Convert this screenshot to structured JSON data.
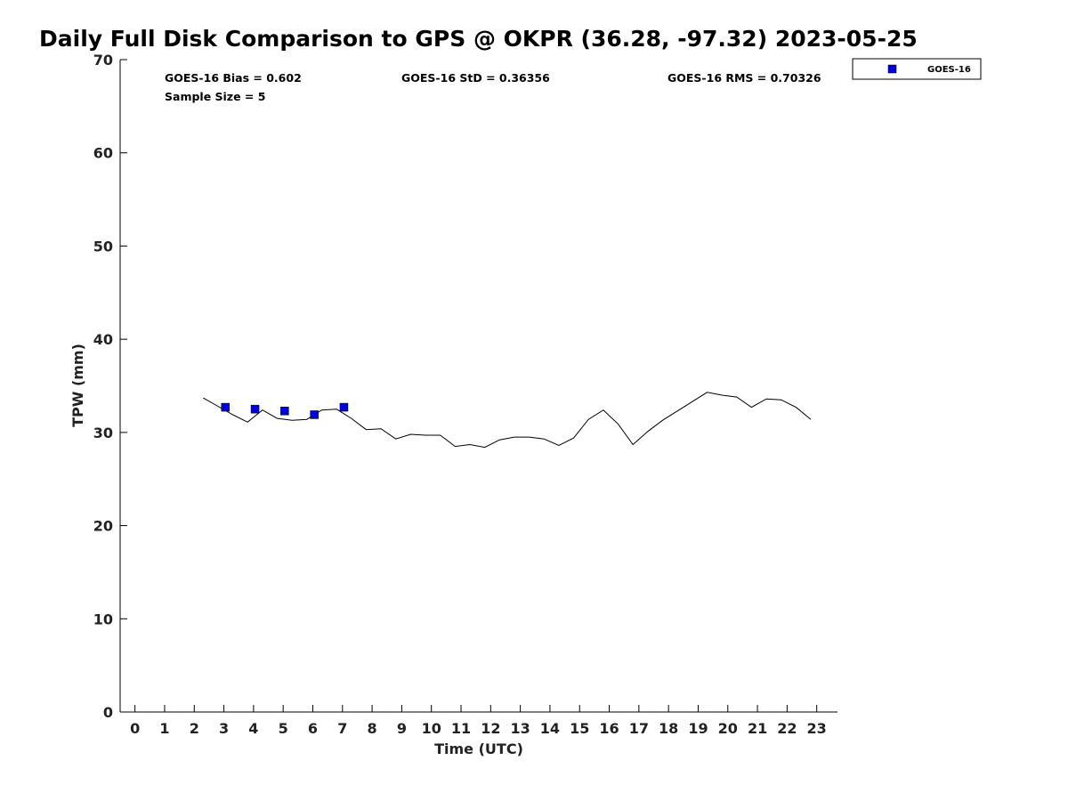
{
  "chart_data": {
    "type": "scatter",
    "title": "Daily Full Disk Comparison to GPS @ OKPR (36.28, -97.32) 2023-05-25",
    "xlabel": "Time (UTC)",
    "ylabel": "TPW (mm)",
    "xlim": [
      -0.5,
      23.7
    ],
    "ylim": [
      0,
      70
    ],
    "x_ticks": [
      0,
      1,
      2,
      3,
      4,
      5,
      6,
      7,
      8,
      9,
      10,
      11,
      12,
      13,
      14,
      15,
      16,
      17,
      18,
      19,
      20,
      21,
      22,
      23
    ],
    "y_ticks": [
      0,
      10,
      20,
      30,
      40,
      50,
      60,
      70
    ],
    "grid": false,
    "legend_position": "outside-top-right",
    "stats": {
      "bias": "GOES-16 Bias = 0.602",
      "std": "GOES-16 StD = 0.36356",
      "rms": "GOES-16 RMS = 0.70326",
      "sample": "Sample Size = 5"
    },
    "series": [
      {
        "name": "GOES-16",
        "kind": "scatter",
        "marker": "square",
        "color": "#0000dd",
        "x": [
          3.05,
          4.05,
          5.05,
          6.05,
          7.05
        ],
        "y": [
          32.7,
          32.5,
          32.3,
          31.9,
          32.7
        ]
      },
      {
        "kind": "line",
        "color": "#000000",
        "x": [
          2.3,
          2.8,
          3.3,
          3.8,
          4.3,
          4.8,
          5.3,
          5.8,
          6.3,
          6.8,
          7.3,
          7.8,
          8.3,
          8.8,
          9.3,
          9.8,
          10.3,
          10.8,
          11.3,
          11.8,
          12.3,
          12.8,
          13.3,
          13.8,
          14.3,
          14.8,
          15.3,
          15.8,
          16.3,
          16.8,
          17.3,
          17.8,
          18.3,
          18.8,
          19.3,
          19.8,
          20.3,
          20.8,
          21.3,
          21.8,
          22.3,
          22.8
        ],
        "y": [
          33.7,
          32.8,
          31.9,
          31.1,
          32.4,
          31.5,
          31.3,
          31.4,
          32.4,
          32.5,
          31.5,
          30.3,
          30.4,
          29.3,
          29.8,
          29.7,
          29.7,
          28.5,
          28.7,
          28.4,
          29.2,
          29.5,
          29.5,
          29.3,
          28.6,
          29.4,
          31.4,
          32.4,
          30.9,
          28.7,
          30.1,
          31.3,
          32.3,
          33.3,
          34.3,
          34.0,
          33.8,
          32.7,
          33.6,
          33.5,
          32.7,
          31.4
        ]
      }
    ]
  }
}
